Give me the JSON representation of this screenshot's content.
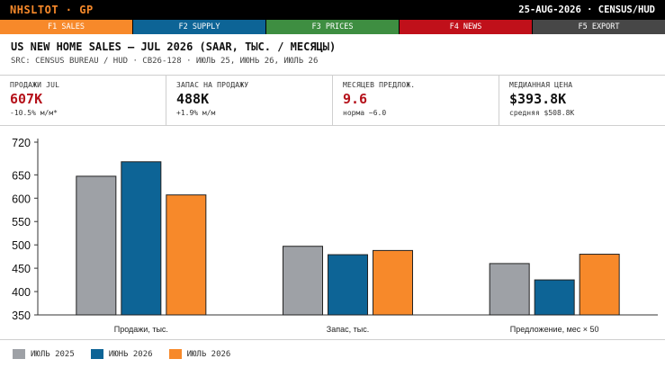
{
  "header": {
    "ticker": "NHSLTOT · GP",
    "meta": "25-AUG-2026 · CENSUS/HUD"
  },
  "fkeys": [
    {
      "label": "F1 SALES",
      "color": "#f7892a"
    },
    {
      "label": "F2 SUPPLY",
      "color": "#0d6496"
    },
    {
      "label": "F3 PRICES",
      "color": "#3e8e41"
    },
    {
      "label": "F4 NEWS",
      "color": "#c0101a"
    },
    {
      "label": "F5 EXPORT",
      "color": "#474747"
    }
  ],
  "title": "US NEW HOME SALES — JUL 2026 (SAAR, ТЫС. / МЕСЯЦЫ)",
  "subtitle": "SRC: CENSUS BUREAU / HUD · CB26-128 · ИЮЛЬ 25, ИЮНЬ 26, ИЮЛЬ 26",
  "stats": [
    {
      "label": "ПРОДАЖИ JUL",
      "value": "607K",
      "sub": "-10.5% м/м*",
      "color": "#b5121b"
    },
    {
      "label": "ЗАПАС НА ПРОДАЖУ",
      "value": "488K",
      "sub": "+1.9% м/м",
      "color": "#111111"
    },
    {
      "label": "МЕСЯЦЕВ ПРЕДЛОЖ.",
      "value": "9.6",
      "sub": "норма ~6.0",
      "color": "#b5121b"
    },
    {
      "label": "МЕДИАННАЯ ЦЕНА",
      "value": "$393.8K",
      "sub": "средняя $508.8K",
      "color": "#111111"
    }
  ],
  "chart_data": {
    "type": "bar",
    "categories": [
      "Продажи, тыс.",
      "Запас, тыс.",
      "Предложение, мес × 50"
    ],
    "series": [
      {
        "name": "ИЮЛЬ 2025",
        "color": "#9ea1a6",
        "values": [
          647,
          497,
          460
        ]
      },
      {
        "name": "ИЮНЬ 2026",
        "color": "#0d6496",
        "values": [
          678,
          479,
          425
        ]
      },
      {
        "name": "ИЮЛЬ 2026",
        "color": "#f7892a",
        "values": [
          607,
          488,
          480
        ]
      }
    ],
    "ylim": [
      350,
      720
    ],
    "yticks": [
      350,
      400,
      450,
      500,
      550,
      600,
      650,
      720
    ],
    "grid": false,
    "legend": "bottom-left"
  }
}
